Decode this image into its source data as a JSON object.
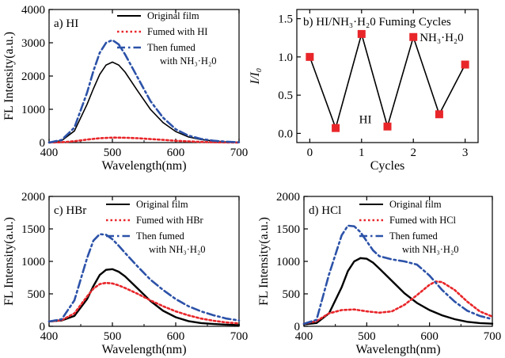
{
  "chart_data": [
    {
      "panel": "a",
      "type": "line",
      "title": "a) HI",
      "xlabel": "Wavelength(nm)",
      "ylabel": "FL Intensity(a.u.)",
      "xlim": [
        400,
        700
      ],
      "ylim": [
        0,
        4000
      ],
      "xticks": [
        400,
        500,
        600,
        700
      ],
      "yticks": [
        0,
        1000,
        2000,
        3000,
        4000
      ],
      "legend_position": "top-right",
      "series": [
        {
          "name": "Original film",
          "color": "#000000",
          "dash": "solid",
          "x": [
            400,
            420,
            440,
            460,
            470,
            480,
            490,
            500,
            510,
            520,
            540,
            560,
            580,
            600,
            620,
            640,
            660,
            680,
            700
          ],
          "y": [
            0,
            60,
            350,
            1150,
            1620,
            2050,
            2330,
            2420,
            2330,
            2120,
            1550,
            1000,
            600,
            330,
            170,
            90,
            45,
            20,
            10
          ]
        },
        {
          "name": "Fumed with HI",
          "color": "#e8262a",
          "dash": "dot",
          "x": [
            400,
            420,
            440,
            460,
            480,
            500,
            520,
            540,
            560,
            580,
            600,
            620,
            640,
            660,
            680,
            700
          ],
          "y": [
            0,
            10,
            40,
            90,
            130,
            150,
            145,
            130,
            105,
            80,
            55,
            35,
            20,
            10,
            5,
            0
          ]
        },
        {
          "name": "Then fumed with NH₃·H₂0",
          "color": "#2c52a8",
          "dash": "dashdot",
          "x": [
            400,
            420,
            440,
            460,
            470,
            480,
            490,
            500,
            510,
            520,
            540,
            560,
            580,
            600,
            620,
            640,
            660,
            680,
            700
          ],
          "y": [
            0,
            80,
            450,
            1500,
            2150,
            2700,
            3000,
            3080,
            2950,
            2650,
            1950,
            1250,
            750,
            400,
            210,
            110,
            55,
            25,
            10
          ]
        }
      ]
    },
    {
      "panel": "b",
      "type": "line",
      "title": "b) HI/NH₃·H₂0 Fuming Cycles",
      "xlabel": "Cycles",
      "ylabel": "I/I₀",
      "xlim": [
        -0.25,
        3.25
      ],
      "ylim": [
        -0.12,
        1.62
      ],
      "xticks": [
        0,
        1,
        2,
        3
      ],
      "yticks": [
        0.0,
        0.5,
        1.0,
        1.5
      ],
      "annotations": [
        "HI",
        "NH₃·H₂0"
      ],
      "series": [
        {
          "name": "",
          "color": "#e8262a",
          "marker": "square",
          "x": [
            0,
            0.5,
            1,
            1.5,
            2,
            2.5,
            3
          ],
          "y": [
            1.0,
            0.07,
            1.3,
            0.09,
            1.26,
            0.25,
            0.9
          ]
        }
      ]
    },
    {
      "panel": "c",
      "type": "line",
      "title": "c) HBr",
      "xlabel": "Wavelength(nm)",
      "ylabel": "FL Intensity(a.u.)",
      "xlim": [
        400,
        700
      ],
      "ylim": [
        0,
        2000
      ],
      "xticks": [
        400,
        500,
        600,
        700
      ],
      "yticks": [
        0,
        500,
        1000,
        1500,
        2000
      ],
      "legend_position": "top-right",
      "series": [
        {
          "name": "Original film",
          "color": "#000000",
          "dash": "solid",
          "x": [
            400,
            420,
            440,
            460,
            470,
            480,
            490,
            500,
            510,
            520,
            540,
            560,
            580,
            600,
            620,
            640,
            660,
            680,
            700
          ],
          "y": [
            75,
            90,
            160,
            420,
            620,
            790,
            870,
            880,
            840,
            770,
            580,
            390,
            240,
            140,
            80,
            50,
            35,
            25,
            20
          ]
        },
        {
          "name": "Fumed with HBr",
          "color": "#e8262a",
          "dash": "dot",
          "x": [
            400,
            420,
            440,
            460,
            470,
            480,
            490,
            500,
            510,
            520,
            540,
            560,
            580,
            600,
            620,
            640,
            660,
            680,
            700
          ],
          "y": [
            75,
            95,
            200,
            460,
            580,
            650,
            670,
            660,
            630,
            590,
            500,
            400,
            310,
            230,
            170,
            120,
            85,
            60,
            45
          ]
        },
        {
          "name": "Then fumed with NH₃·H₂0",
          "color": "#2c52a8",
          "dash": "dashdot",
          "x": [
            400,
            420,
            440,
            460,
            470,
            480,
            490,
            500,
            510,
            520,
            540,
            560,
            580,
            600,
            620,
            640,
            660,
            680,
            700
          ],
          "y": [
            75,
            110,
            400,
            1050,
            1320,
            1420,
            1410,
            1340,
            1240,
            1130,
            920,
            720,
            560,
            420,
            310,
            230,
            170,
            120,
            90
          ]
        }
      ]
    },
    {
      "panel": "d",
      "type": "line",
      "title": "d) HCl",
      "xlabel": "Wavelength(nm)",
      "ylabel": "FL Intensity(a.u.)",
      "xlim": [
        400,
        700
      ],
      "ylim": [
        0,
        2000
      ],
      "xticks": [
        400,
        500,
        600,
        700
      ],
      "yticks": [
        0,
        500,
        1000,
        1500,
        2000
      ],
      "legend_position": "top-right",
      "series": [
        {
          "name": "Original film",
          "color": "#000000",
          "dash": "solid",
          "x": [
            400,
            420,
            440,
            460,
            470,
            480,
            490,
            500,
            510,
            520,
            540,
            560,
            580,
            600,
            620,
            640,
            660,
            680,
            700
          ],
          "y": [
            30,
            50,
            200,
            600,
            850,
            1000,
            1050,
            1040,
            980,
            890,
            700,
            510,
            360,
            250,
            170,
            110,
            70,
            50,
            40
          ]
        },
        {
          "name": "Fumed with HCl",
          "color": "#e8262a",
          "dash": "dot",
          "x": [
            400,
            420,
            440,
            460,
            480,
            500,
            520,
            540,
            560,
            580,
            600,
            610,
            620,
            640,
            660,
            680,
            700
          ],
          "y": [
            40,
            80,
            200,
            250,
            260,
            230,
            210,
            230,
            330,
            480,
            640,
            690,
            680,
            560,
            380,
            230,
            150
          ]
        },
        {
          "name": "Then fumed with NH₃·H₂0",
          "color": "#2c52a8",
          "dash": "dashdot",
          "x": [
            400,
            420,
            440,
            460,
            470,
            480,
            490,
            500,
            510,
            520,
            540,
            560,
            580,
            600,
            620,
            640,
            660,
            680,
            700
          ],
          "y": [
            40,
            100,
            800,
            1400,
            1550,
            1540,
            1450,
            1310,
            1170,
            1080,
            1030,
            1000,
            950,
            780,
            560,
            380,
            240,
            160,
            110
          ]
        }
      ]
    }
  ]
}
